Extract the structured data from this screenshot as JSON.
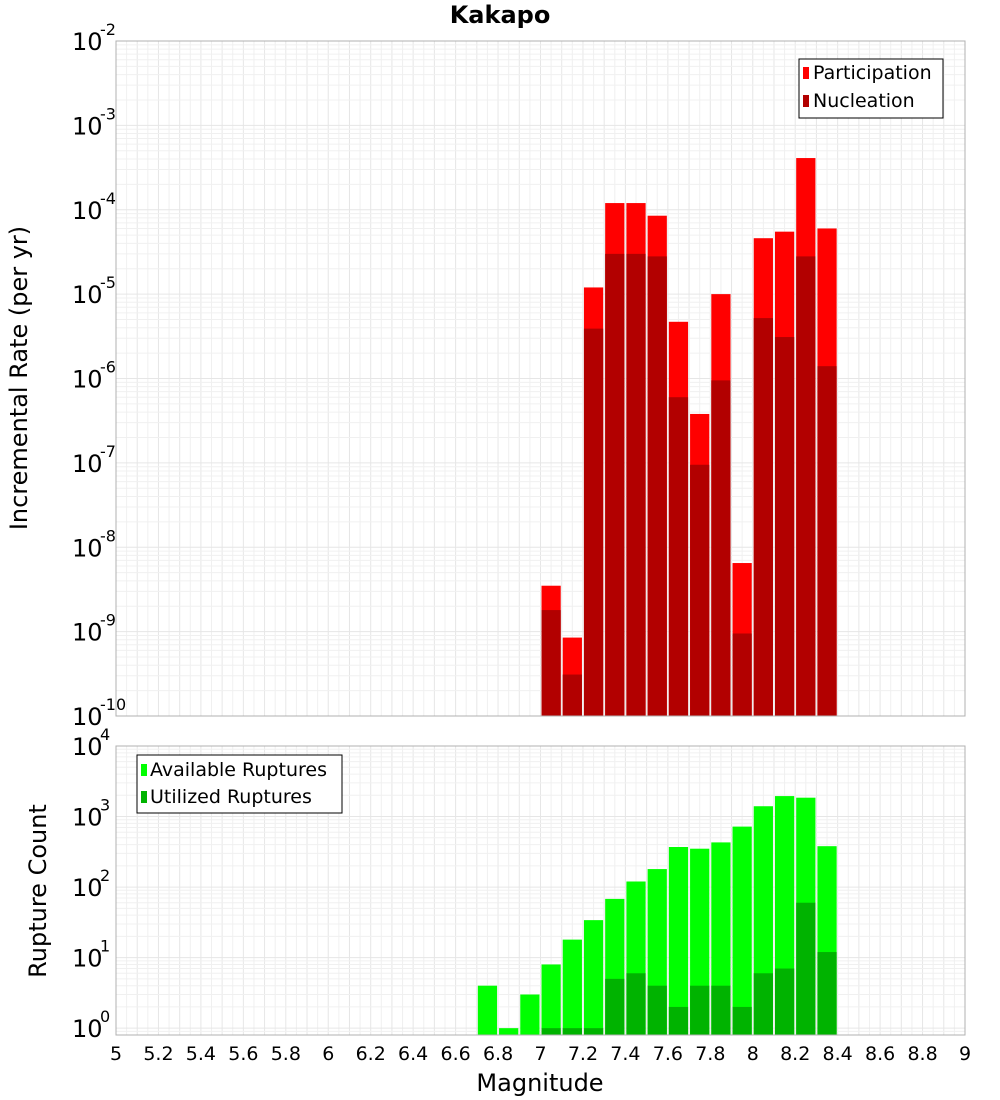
{
  "chart_data": [
    {
      "type": "bar",
      "title": "Kakapo",
      "ylabel": "Incremental Rate (per yr)",
      "xlabel": "",
      "x_scale": "linear",
      "y_scale": "log",
      "xlim": [
        5,
        9
      ],
      "ylim": [
        1e-10,
        0.01
      ],
      "y_ticks": [
        {
          "base": "10",
          "exp": "-10"
        },
        {
          "base": "10",
          "exp": "-9"
        },
        {
          "base": "10",
          "exp": "-8"
        },
        {
          "base": "10",
          "exp": "-7"
        },
        {
          "base": "10",
          "exp": "-6"
        },
        {
          "base": "10",
          "exp": "-5"
        },
        {
          "base": "10",
          "exp": "-4"
        },
        {
          "base": "10",
          "exp": "-3"
        },
        {
          "base": "10",
          "exp": "-2"
        }
      ],
      "grid": true,
      "legend_position": "top-right",
      "x": [
        7.05,
        7.15,
        7.25,
        7.35,
        7.45,
        7.55,
        7.65,
        7.75,
        7.85,
        7.95,
        8.05,
        8.15,
        8.25,
        8.35
      ],
      "series": [
        {
          "name": "Participation",
          "color": "#ff0000",
          "values": [
            3.5e-09,
            8.5e-10,
            1.2e-05,
            0.00012,
            0.00012,
            8.5e-05,
            4.7e-06,
            3.8e-07,
            1e-05,
            6.5e-09,
            4.6e-05,
            5.5e-05,
            0.00041,
            6e-05
          ]
        },
        {
          "name": "Nucleation",
          "color": "#b20000",
          "values": [
            1.8e-09,
            3.1e-10,
            3.9e-06,
            3e-05,
            3e-05,
            2.8e-05,
            6e-07,
            9.5e-08,
            9.5e-07,
            9.5e-10,
            5.2e-06,
            3.1e-06,
            2.8e-05,
            1.4e-06
          ]
        }
      ]
    },
    {
      "type": "bar",
      "title": "",
      "ylabel": "Rupture Count",
      "xlabel": "Magnitude",
      "x_scale": "linear",
      "y_scale": "log",
      "xlim": [
        5,
        9
      ],
      "ylim": [
        0.8,
        10000
      ],
      "y_ticks": [
        {
          "base": "10",
          "exp": "0"
        },
        {
          "base": "10",
          "exp": "1"
        },
        {
          "base": "10",
          "exp": "2"
        },
        {
          "base": "10",
          "exp": "3"
        },
        {
          "base": "10",
          "exp": "4"
        }
      ],
      "x_ticks": [
        "5",
        "5.2",
        "5.4",
        "5.6",
        "5.8",
        "6",
        "6.2",
        "6.4",
        "6.6",
        "6.8",
        "7",
        "7.2",
        "7.4",
        "7.6",
        "7.8",
        "8",
        "8.2",
        "8.4",
        "8.6",
        "8.8",
        "9"
      ],
      "grid": true,
      "legend_position": "top-left",
      "x": [
        6.75,
        6.85,
        6.95,
        7.05,
        7.15,
        7.25,
        7.35,
        7.45,
        7.55,
        7.65,
        7.75,
        7.85,
        7.95,
        8.05,
        8.15,
        8.25,
        8.35
      ],
      "series": [
        {
          "name": "Available Ruptures",
          "color": "#00ff00",
          "values": [
            4,
            1,
            3,
            8,
            18,
            34,
            68,
            120,
            180,
            370,
            350,
            430,
            720,
            1400,
            1950,
            1850,
            380
          ]
        },
        {
          "name": "Utilized Ruptures",
          "color": "#00b300",
          "values": [
            null,
            null,
            null,
            1,
            1,
            1,
            5,
            6,
            4,
            2,
            4,
            4,
            2,
            6,
            7,
            60,
            12
          ]
        }
      ]
    }
  ]
}
